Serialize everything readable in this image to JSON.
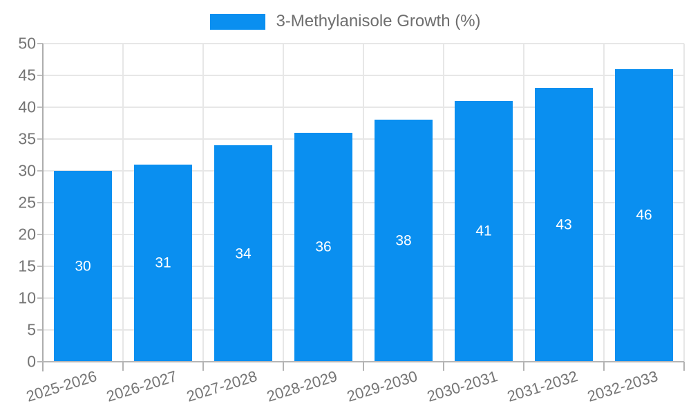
{
  "chart_data": {
    "type": "bar",
    "title": "3-Methylanisole Growth (%)",
    "series_name": "3-Methylanisole Growth (%)",
    "categories": [
      "2025-2026",
      "2026-2027",
      "2027-2028",
      "2028-2029",
      "2029-2030",
      "2030-2031",
      "2031-2032",
      "2032-2033"
    ],
    "values": [
      30,
      31,
      34,
      36,
      38,
      41,
      43,
      46
    ],
    "value_labels": [
      "30",
      "31",
      "34",
      "36",
      "38",
      "41",
      "43",
      "46"
    ],
    "xlabel": "",
    "ylabel": "",
    "ylim": [
      0,
      50
    ],
    "ytick_step": 5,
    "y_tick_labels": [
      "0",
      "5",
      "10",
      "15",
      "20",
      "25",
      "30",
      "35",
      "40",
      "45",
      "50"
    ],
    "grid": "on",
    "legend_position": "top",
    "bar_color": "#0a8ff0",
    "value_label_color": "#ffffff"
  },
  "colors": {
    "bar": "#0a8ff0",
    "grid": "#e7e7e7",
    "axis": "#b0b0b0",
    "tick_label": "#757575",
    "legend_text": "#6e6e6e",
    "background": "#ffffff"
  }
}
